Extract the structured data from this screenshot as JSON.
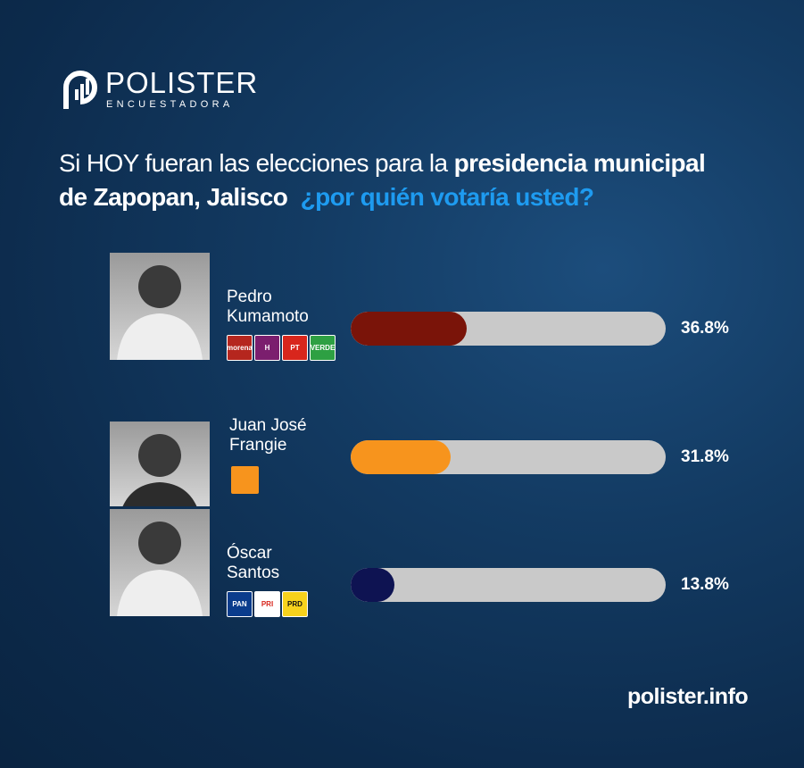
{
  "brand": {
    "name": "POLISTER",
    "tagline": "ENCUESTADORA"
  },
  "chart_data": {
    "type": "bar",
    "title": [
      "Si HOY fueran las elecciones  para la",
      "presidencia municipal",
      "de Zapopan, Jalisco",
      "¿por quién votaría usted?"
    ],
    "categories": [
      "Pedro Kumamoto",
      "Juan José Frangie",
      "Óscar Santos"
    ],
    "values": [
      36.8,
      31.8,
      13.8
    ],
    "value_labels": [
      "36.8%",
      "31.8%",
      "13.8%"
    ],
    "colors": [
      "#7a1409",
      "#f7941d",
      "#0e1352"
    ],
    "xlim": [
      0,
      100
    ],
    "parties": [
      [
        "morena",
        "H",
        "PT",
        "VERDE"
      ],
      [],
      [
        "PAN",
        "PRI",
        "PRD"
      ]
    ]
  },
  "footer": "polister.info"
}
